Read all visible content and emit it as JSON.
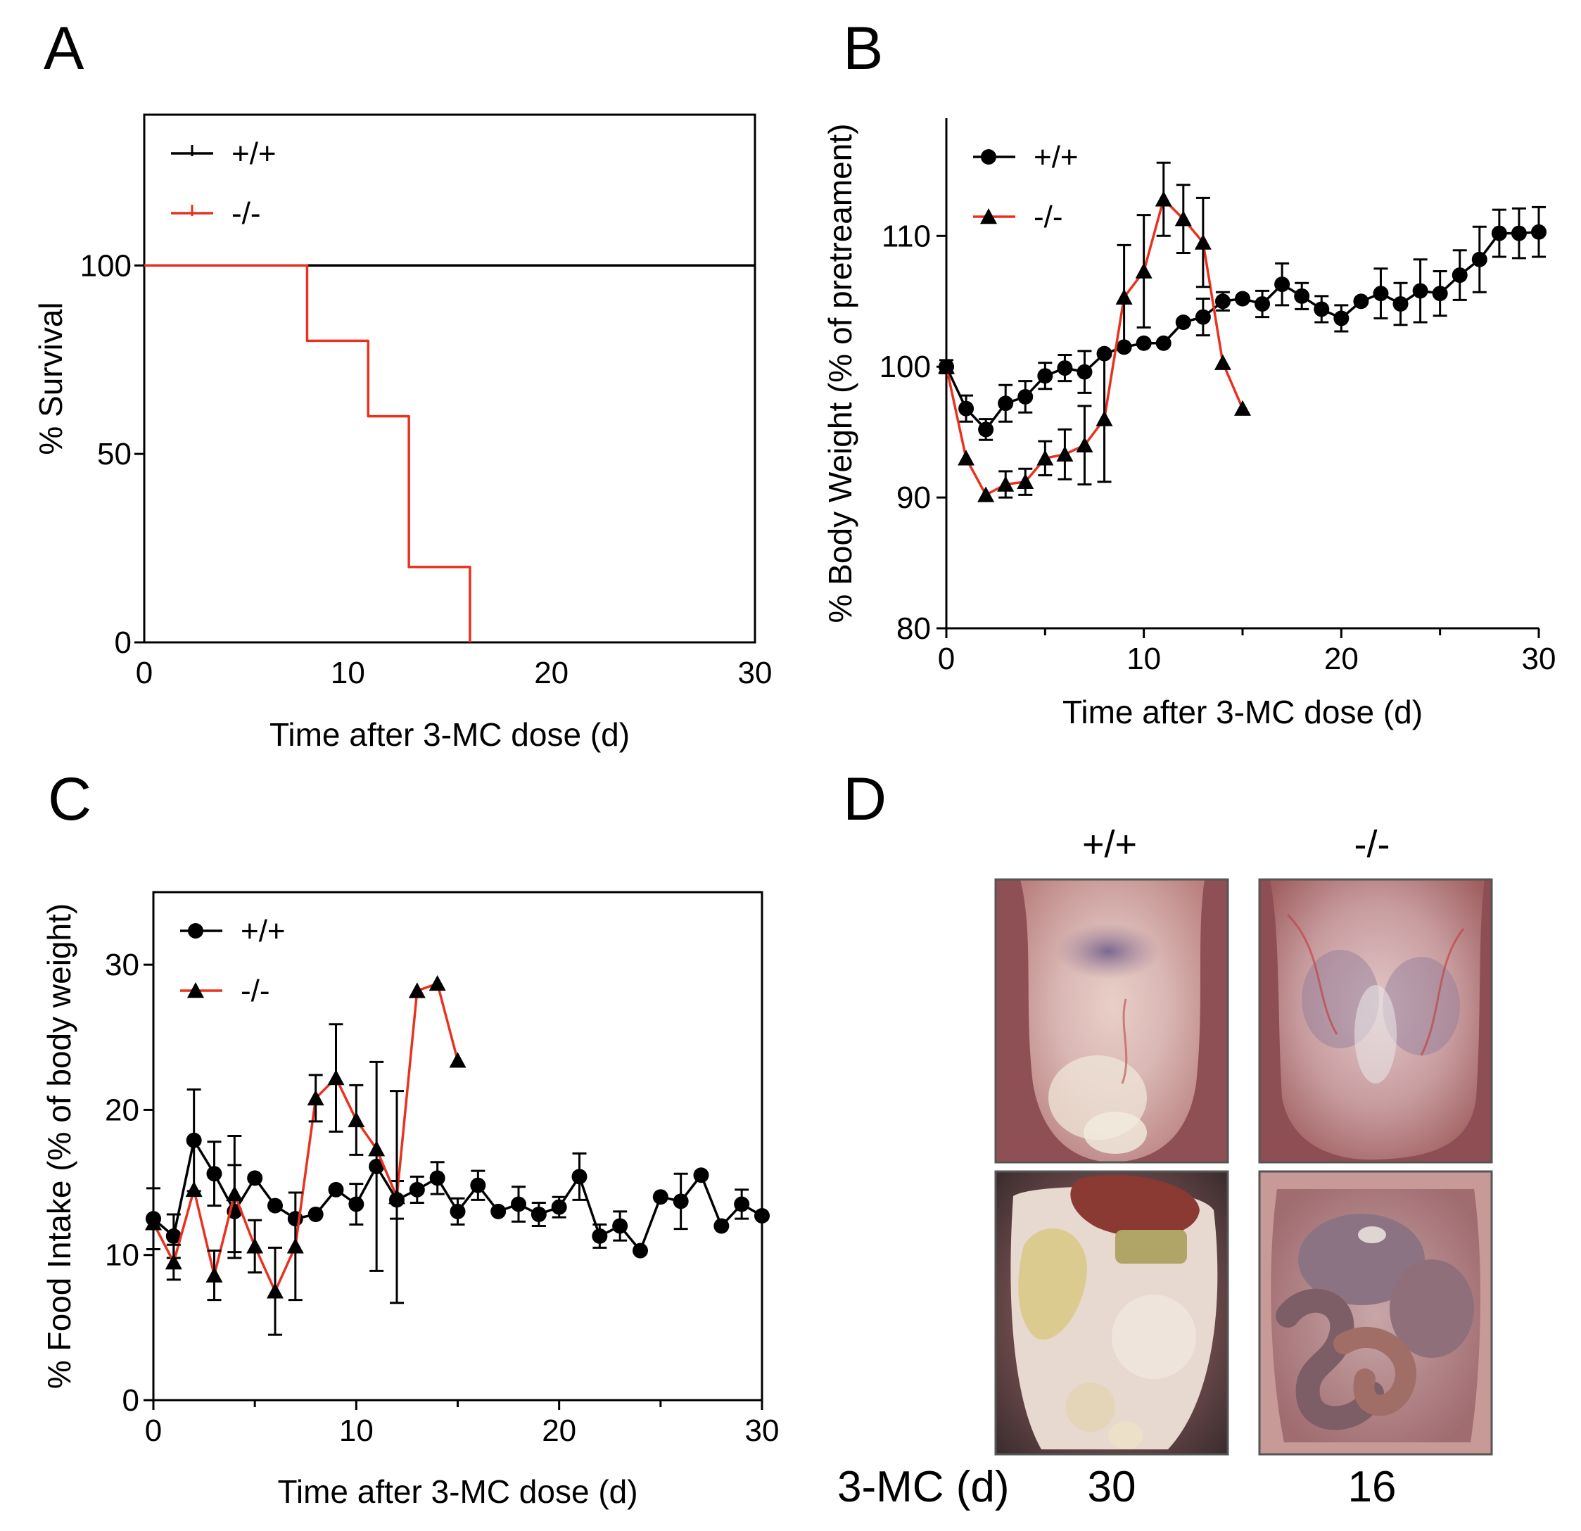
{
  "colors": {
    "wt": "#000000",
    "ko": "#e8321f"
  },
  "chart_data": [
    {
      "panel": "A",
      "type": "line",
      "step": true,
      "title": "",
      "xlabel": "Time after 3-MC dose (d)",
      "ylabel": "% Survival",
      "xlim": [
        0,
        30
      ],
      "ylim": [
        0,
        140
      ],
      "xticks": [
        0,
        10,
        20,
        30
      ],
      "yticks": [
        0,
        50,
        100
      ],
      "legend": "top-left",
      "series": [
        {
          "name": "+/+",
          "x": [
            0,
            30
          ],
          "y": [
            100,
            100
          ],
          "color": "wt"
        },
        {
          "name": "-/-",
          "x": [
            0,
            8,
            11,
            13,
            16
          ],
          "y": [
            100,
            80,
            60,
            20,
            0
          ],
          "color": "ko"
        }
      ]
    },
    {
      "panel": "B",
      "type": "line",
      "title": "",
      "xlabel": "Time after 3-MC dose (d)",
      "ylabel": "% Body Weight (% of pretreament)",
      "xlim": [
        0,
        30
      ],
      "ylim": [
        80,
        119
      ],
      "xticks": [
        0,
        10,
        20,
        30
      ],
      "yticks": [
        80,
        90,
        100,
        110
      ],
      "legend": "top-left",
      "series": [
        {
          "name": "+/+",
          "marker": "circle",
          "color": "wt",
          "x": [
            0,
            1,
            2,
            3,
            4,
            5,
            6,
            7,
            8,
            9,
            10,
            11,
            12,
            13,
            14,
            15,
            16,
            17,
            18,
            19,
            20,
            21,
            22,
            23,
            24,
            25,
            26,
            27,
            28,
            29,
            30
          ],
          "y": [
            100,
            96.8,
            95.2,
            97.2,
            97.7,
            99.3,
            99.9,
            99.6,
            101,
            101.5,
            101.8,
            101.8,
            103.4,
            103.8,
            105,
            105.2,
            104.8,
            106.3,
            105.4,
            104.4,
            103.7,
            105,
            105.6,
            104.8,
            105.8,
            105.6,
            107,
            108.2,
            110.2,
            110.2,
            110.3
          ],
          "err": [
            0.5,
            1,
            0.8,
            1.4,
            1.2,
            1,
            1,
            1.6,
            0,
            0,
            0,
            0,
            0,
            1.4,
            0.7,
            0,
            1,
            1.6,
            1,
            1,
            1,
            0,
            1.9,
            1.6,
            2.4,
            1.7,
            1.9,
            2.5,
            1.8,
            1.9,
            1.9
          ]
        },
        {
          "name": "-/-",
          "marker": "triangle",
          "color": "ko",
          "x": [
            0,
            1,
            2,
            3,
            4,
            5,
            6,
            7,
            8,
            9,
            10,
            11,
            12,
            13,
            14,
            15
          ],
          "y": [
            100,
            93,
            90.2,
            91,
            91.2,
            93,
            93.3,
            94,
            96,
            105.3,
            107.3,
            112.8,
            111.3,
            109.5,
            100.3,
            96.8
          ],
          "err": [
            0,
            0,
            0,
            1,
            1,
            1.3,
            1.9,
            3,
            4.8,
            4,
            4.3,
            2.8,
            2.6,
            3.4,
            0,
            0
          ]
        }
      ]
    },
    {
      "panel": "C",
      "type": "line",
      "title": "",
      "xlabel": "Time after 3-MC dose (d)",
      "ylabel": "% Food Intake (% of body weight)",
      "xlim": [
        0,
        30
      ],
      "ylim": [
        0,
        35
      ],
      "xticks": [
        0,
        10,
        20,
        30
      ],
      "yticks": [
        0,
        10,
        20,
        30
      ],
      "legend": "top-left",
      "series": [
        {
          "name": "+/+",
          "marker": "circle",
          "color": "wt",
          "x": [
            0,
            1,
            2,
            3,
            4,
            5,
            6,
            7,
            8,
            9,
            10,
            11,
            12,
            13,
            14,
            15,
            16,
            17,
            18,
            19,
            20,
            21,
            22,
            23,
            24,
            25,
            26,
            27,
            28,
            29,
            30
          ],
          "y": [
            12.5,
            11.3,
            17.9,
            15.6,
            13,
            15.3,
            13.4,
            12.5,
            12.8,
            14.5,
            13.5,
            16.1,
            13.8,
            14.5,
            15.3,
            13,
            14.8,
            13,
            13.5,
            12.8,
            13.3,
            15.4,
            11.3,
            12,
            10.3,
            14,
            13.7,
            15.5,
            12,
            13.5,
            12.7
          ],
          "err": [
            2.1,
            1.5,
            3.5,
            2.2,
            3.2,
            0,
            0,
            0,
            0,
            0,
            1.4,
            7.2,
            1.3,
            0.9,
            1.1,
            0.9,
            1,
            0,
            1.2,
            0.8,
            0.7,
            1.6,
            0.8,
            1,
            0,
            0,
            1.9,
            0,
            0,
            1,
            0
          ]
        },
        {
          "name": "-/-",
          "marker": "triangle",
          "color": "ko",
          "x": [
            0,
            1,
            2,
            3,
            4,
            5,
            6,
            7,
            8,
            9,
            10,
            11,
            12,
            13,
            14,
            15
          ],
          "y": [
            12.2,
            9.5,
            14.5,
            8.6,
            14.2,
            10.6,
            7.5,
            10.6,
            20.8,
            22.2,
            19.3,
            17.3,
            14,
            28.2,
            28.7,
            23.4
          ],
          "err": [
            0,
            1.2,
            0,
            1.7,
            4,
            1.8,
            3,
            3.7,
            1.6,
            3.7,
            2.4,
            0,
            7.3,
            0,
            0,
            0
          ]
        }
      ]
    }
  ],
  "panel_d": {
    "label": "D",
    "columns": [
      "+/+",
      "-/-"
    ],
    "row_label": "3-MC (d)",
    "days": [
      "30",
      "16"
    ]
  }
}
